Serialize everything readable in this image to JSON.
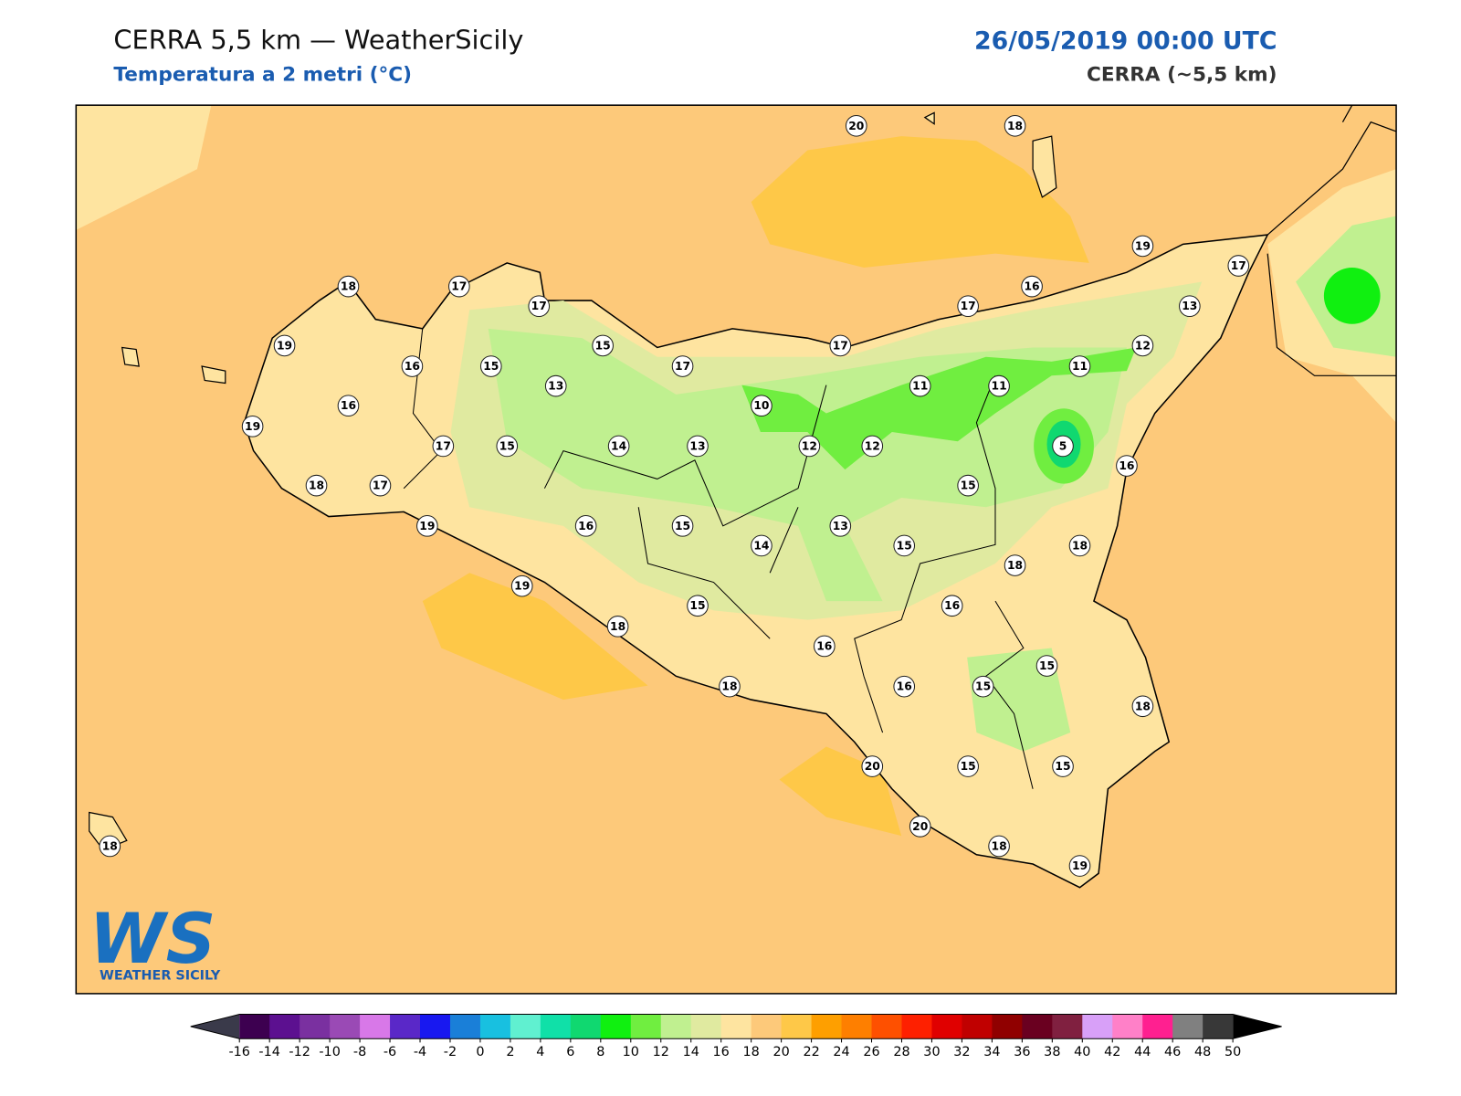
{
  "header": {
    "title": "CERRA 5,5 km — WeatherSicily",
    "subtitle": "Temperatura a 2 metri (°C)",
    "datetime": "26/05/2019 00:00 UTC",
    "model": "CERRA (~5,5 km)"
  },
  "logo": {
    "mark": "WS",
    "name": "WEATHER SICILY"
  },
  "stations": [
    20,
    18,
    19,
    17,
    18,
    17,
    17,
    16,
    17,
    13,
    19,
    15,
    17,
    12,
    16,
    15,
    17,
    11,
    11,
    11,
    13,
    16,
    10,
    19,
    17,
    15,
    14,
    13,
    12,
    12,
    5,
    16,
    18,
    17,
    15,
    19,
    16,
    15,
    13,
    14,
    15,
    18,
    18,
    19,
    15,
    16,
    18,
    16,
    15,
    18,
    16,
    15,
    18,
    20,
    15,
    15,
    20,
    18,
    19,
    18
  ],
  "colorbar": {
    "ticks": [
      -16,
      -14,
      -12,
      -10,
      -8,
      -6,
      -4,
      -2,
      0,
      2,
      4,
      6,
      8,
      10,
      12,
      14,
      16,
      18,
      20,
      22,
      24,
      26,
      28,
      30,
      32,
      34,
      36,
      38,
      40,
      42,
      44,
      46,
      48,
      50
    ],
    "colors": [
      "#3d0050",
      "#5c1090",
      "#7a30a0",
      "#9a4ab5",
      "#d878e8",
      "#5a28c8",
      "#1818f0",
      "#1a7fd8",
      "#18c0e0",
      "#60f0d0",
      "#10e0a8",
      "#10d870",
      "#10f010",
      "#70ee40",
      "#c0f090",
      "#e0eaa0",
      "#fee4a0",
      "#fdc97a",
      "#fec848",
      "#fe9f00",
      "#fe7f00",
      "#fe5000",
      "#fe2000",
      "#e00000",
      "#c00000",
      "#900000",
      "#6a0020",
      "#802040",
      "#d8a0f8",
      "#ff80c8",
      "#ff2090",
      "#808080",
      "#383838"
    ],
    "under_color": "#3a3a4a",
    "over_color": "#000000"
  }
}
